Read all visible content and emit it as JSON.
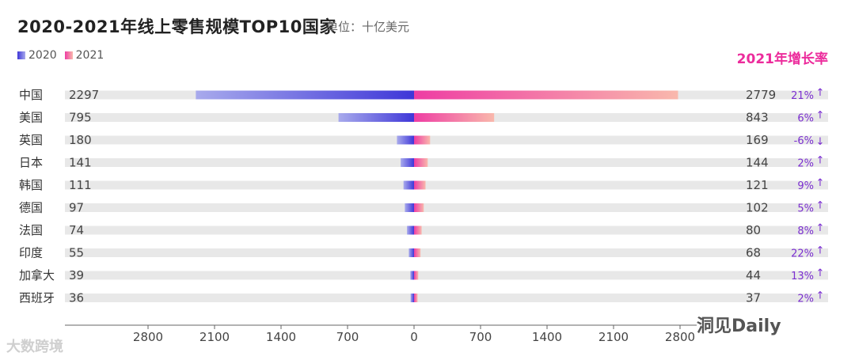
{
  "header": {
    "title": "2020-2021年线上零售规模TOP10国家",
    "unit": "单位：十亿美元",
    "growth_title": "2021年增长率"
  },
  "legend": {
    "y2020": "2020",
    "y2021": "2021"
  },
  "colors": {
    "blue_dark": "#3f37d8",
    "blue_light": "#a8aaec",
    "pink_dark": "#ee3da3",
    "pink_light": "#f9b8ac",
    "track": "#e8e8e8",
    "growth_title": "#ec2c9c",
    "growth_text": "#7b2fd0"
  },
  "watermarks": {
    "left": "大数跨境",
    "right": "洞见Daily"
  },
  "chart_data": {
    "type": "bar",
    "subtype": "butterfly",
    "title": "2020-2021年线上零售规模TOP10国家",
    "unit": "单位：十亿美元",
    "categories": [
      "中国",
      "美国",
      "英国",
      "日本",
      "韩国",
      "德国",
      "法国",
      "印度",
      "加拿大",
      "西班牙"
    ],
    "series": [
      {
        "name": "2020",
        "values": [
          2297,
          795,
          180,
          141,
          111,
          97,
          74,
          55,
          39,
          36
        ]
      },
      {
        "name": "2021",
        "values": [
          2779,
          843,
          169,
          144,
          121,
          102,
          80,
          68,
          44,
          37
        ]
      }
    ],
    "growth_2021": [
      "21%",
      "6%",
      "-6%",
      "2%",
      "9%",
      "5%",
      "8%",
      "22%",
      "13%",
      "2%"
    ],
    "growth_direction": [
      "up",
      "up",
      "down",
      "up",
      "up",
      "up",
      "up",
      "up",
      "up",
      "up"
    ],
    "x_ticks": [
      "2800",
      "2100",
      "1400",
      "700",
      "0",
      "700",
      "1400",
      "2100",
      "2800"
    ],
    "xlim": [
      -3000,
      3000
    ],
    "legend": "top-left"
  }
}
